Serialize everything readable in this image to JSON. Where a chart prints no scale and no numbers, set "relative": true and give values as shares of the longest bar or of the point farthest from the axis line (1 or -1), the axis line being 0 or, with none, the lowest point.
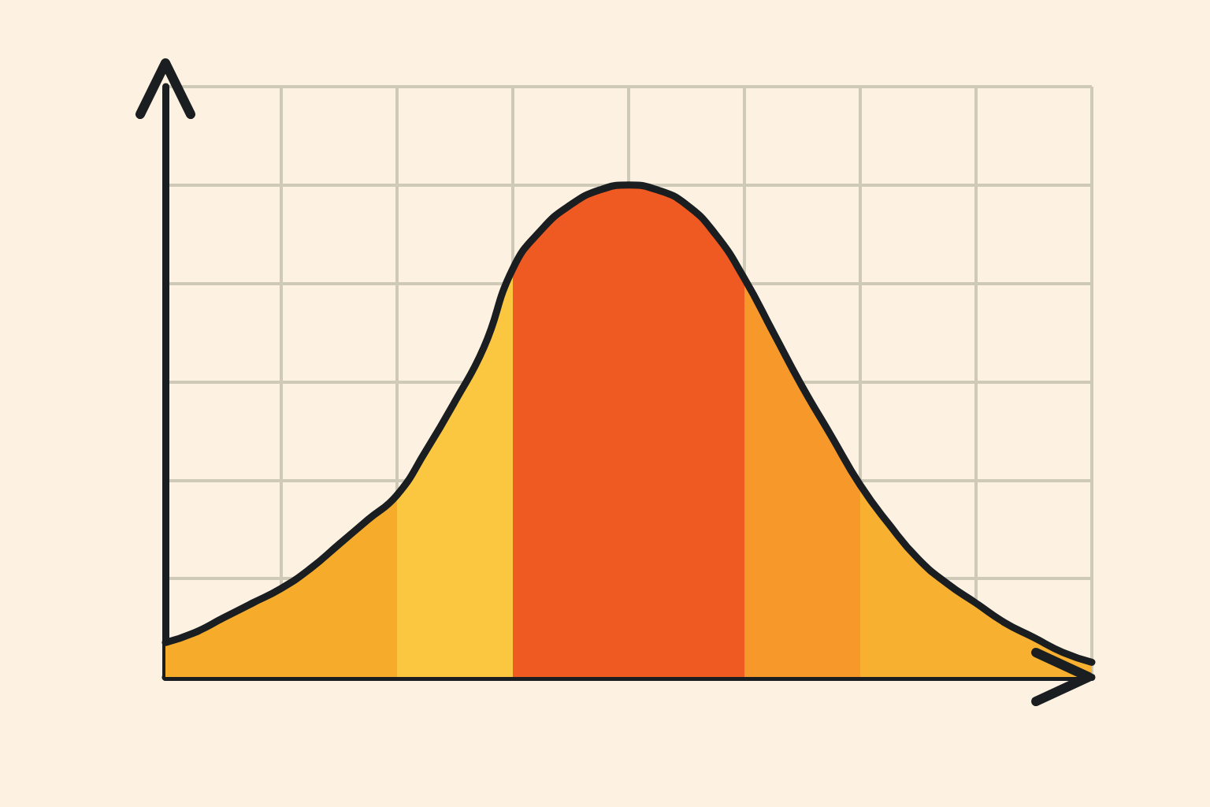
{
  "chart_data": {
    "type": "area",
    "relative": true,
    "grid": true,
    "categories": [
      null,
      null,
      null,
      null,
      null,
      null,
      null,
      null,
      null,
      null,
      null,
      null,
      null,
      null,
      null,
      null,
      null,
      null,
      null,
      null,
      null,
      null,
      null,
      null,
      null,
      null,
      null,
      null,
      null,
      null,
      null,
      null,
      null
    ],
    "series": [
      {
        "color": "#f6ac2a",
        "values": [
          0.07,
          0.09,
          0.12,
          0.15,
          0.18,
          0.22,
          0.27,
          0.32,
          0.37,
          null,
          null,
          null,
          null,
          null,
          null,
          null,
          null,
          null,
          null,
          null,
          null,
          null,
          null,
          null,
          null,
          null,
          null,
          null,
          null,
          null,
          null,
          null,
          null
        ]
      },
      {
        "color": "#fbc640",
        "values": [
          null,
          null,
          null,
          null,
          null,
          null,
          null,
          null,
          0.37,
          0.46,
          0.56,
          0.67,
          0.83,
          null,
          null,
          null,
          null,
          null,
          null,
          null,
          null,
          null,
          null,
          null,
          null,
          null,
          null,
          null,
          null,
          null,
          null,
          null,
          null
        ]
      },
      {
        "color": "#ee5a22",
        "values": [
          null,
          null,
          null,
          null,
          null,
          null,
          null,
          null,
          null,
          null,
          null,
          null,
          0.83,
          0.91,
          0.96,
          0.99,
          1,
          null,
          null,
          null,
          null,
          null,
          null,
          null,
          null,
          null,
          null,
          null,
          null,
          null,
          null,
          null,
          null
        ]
      },
      {
        "color": "#ee5a22",
        "values": [
          null,
          null,
          null,
          null,
          null,
          null,
          null,
          null,
          null,
          null,
          null,
          null,
          null,
          null,
          null,
          null,
          1,
          0.99,
          0.96,
          0.9,
          0.81,
          null,
          null,
          null,
          null,
          null,
          null,
          null,
          null,
          null,
          null,
          null,
          null
        ]
      },
      {
        "color": "#f6992a",
        "values": [
          null,
          null,
          null,
          null,
          null,
          null,
          null,
          null,
          null,
          null,
          null,
          null,
          null,
          null,
          null,
          null,
          null,
          null,
          null,
          null,
          0.81,
          0.7,
          0.59,
          0.49,
          0.39,
          null,
          null,
          null,
          null,
          null,
          null,
          null,
          null
        ]
      },
      {
        "color": "#f7b030",
        "values": [
          null,
          null,
          null,
          null,
          null,
          null,
          null,
          null,
          null,
          null,
          null,
          null,
          null,
          null,
          null,
          null,
          null,
          null,
          null,
          null,
          null,
          null,
          null,
          null,
          0.39,
          0.31,
          0.24,
          0.19,
          0.15,
          0.11,
          0.08,
          0.05,
          0.03
        ]
      },
      {
        "type": "line",
        "color": "#1a1e21",
        "values": [
          0.07,
          0.09,
          0.12,
          0.15,
          0.18,
          0.22,
          0.27,
          0.32,
          0.37,
          0.46,
          0.56,
          0.67,
          0.83,
          0.91,
          0.96,
          0.99,
          1,
          0.99,
          0.96,
          0.9,
          0.81,
          0.7,
          0.59,
          0.49,
          0.39,
          0.31,
          0.24,
          0.19,
          0.15,
          0.11,
          0.08,
          0.05,
          0.03
        ]
      }
    ]
  }
}
